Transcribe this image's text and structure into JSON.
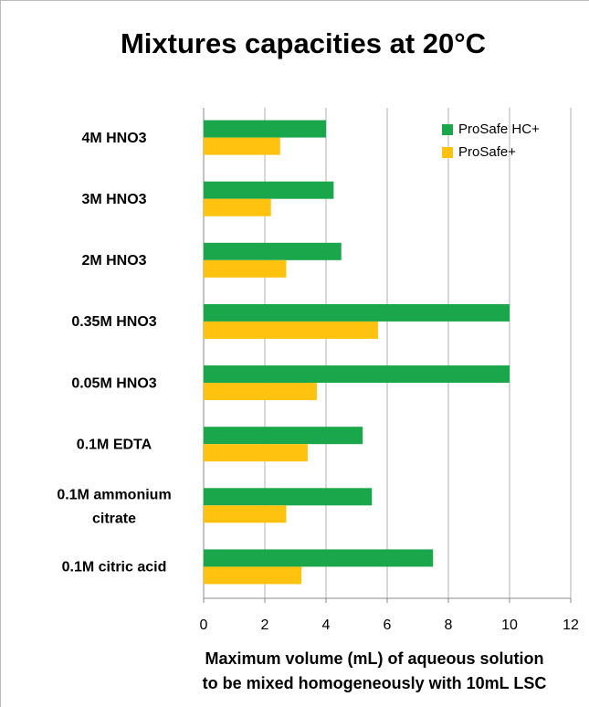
{
  "chart_data": {
    "type": "bar",
    "orientation": "horizontal",
    "title": "Mixtures capacities at 20°C",
    "xlabel": [
      "Maximum volume (mL) of aqueous solution",
      "to be mixed homogeneously with 10mL LSC"
    ],
    "categories": [
      "4M HNO3",
      "3M HNO3",
      "2M HNO3",
      "0.35M HNO3",
      "0.05M HNO3",
      "0.1M EDTA",
      "0.1M ammonium citrate",
      "0.1M citric acid"
    ],
    "series": [
      {
        "name": "ProSafe HC+",
        "color": "#1aa64a",
        "values": [
          4.0,
          4.25,
          4.5,
          10,
          10,
          5.2,
          5.5,
          7.5
        ]
      },
      {
        "name": "ProSafe+",
        "color": "#ffc20e",
        "values": [
          2.5,
          2.2,
          2.7,
          5.7,
          3.7,
          3.4,
          2.7,
          3.2
        ]
      }
    ],
    "xlim": [
      0,
      12
    ],
    "xticks": [
      0,
      2,
      4,
      6,
      8,
      10,
      12
    ],
    "grid": true,
    "legend": "upper right"
  }
}
